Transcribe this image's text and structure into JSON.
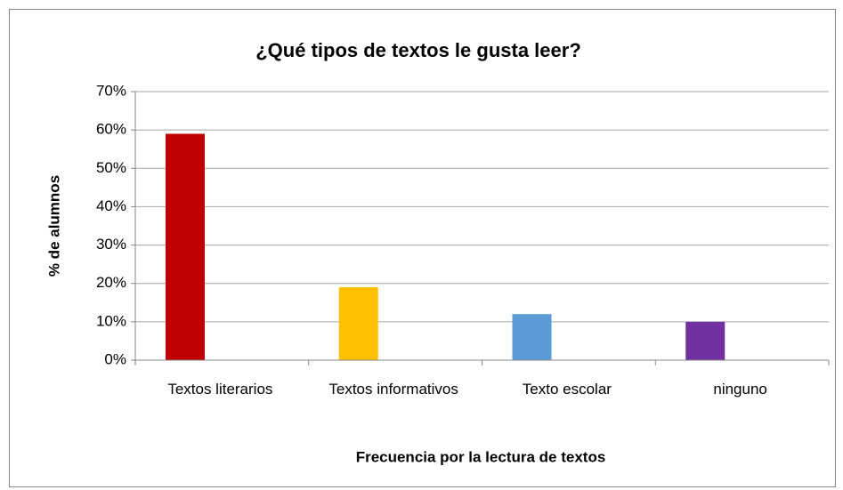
{
  "chart_data": {
    "type": "bar",
    "title": "¿Qué tipos de textos le gusta leer?",
    "x_label": "Frecuencia por la lectura de textos",
    "y_label": "% de alumnos",
    "categories": [
      "Textos literarios",
      "Textos informativos",
      "Texto escolar",
      "ninguno"
    ],
    "values": [
      59,
      19,
      12,
      10
    ],
    "colors": [
      "#c00000",
      "#ffc000",
      "#5b9bd5",
      "#7030a0"
    ],
    "ylim": [
      0,
      70
    ],
    "yticks": [
      {
        "value": 0,
        "label": "0%"
      },
      {
        "value": 10,
        "label": "10%"
      },
      {
        "value": 20,
        "label": "20%"
      },
      {
        "value": 30,
        "label": "30%"
      },
      {
        "value": 40,
        "label": "40%"
      },
      {
        "value": 50,
        "label": "50%"
      },
      {
        "value": 60,
        "label": "60%"
      },
      {
        "value": 70,
        "label": "70%"
      }
    ],
    "grid": true
  }
}
